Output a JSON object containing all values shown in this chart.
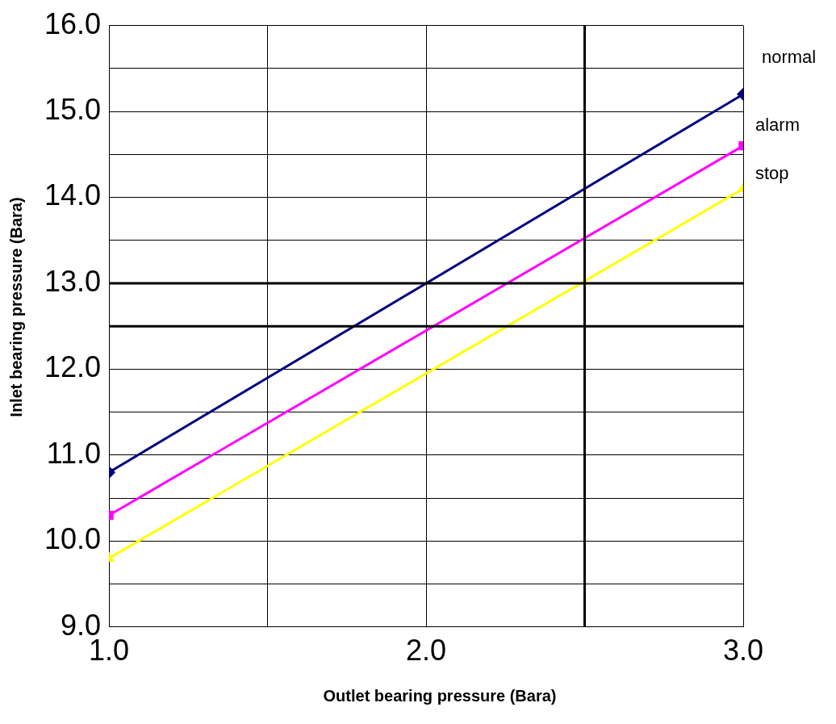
{
  "chart_data": {
    "type": "line",
    "xlabel": "Outlet bearing pressure (Bara)",
    "ylabel": "Inlet bearing pressure (Bara)",
    "x": [
      1,
      3
    ],
    "series": [
      {
        "name": "normal",
        "color": "#000080",
        "values": [
          10.8,
          15.2
        ],
        "marker": "diamond"
      },
      {
        "name": "alarm",
        "color": "#ff00ff",
        "values": [
          10.3,
          14.6
        ],
        "marker": "square"
      },
      {
        "name": "stop",
        "color": "#ffff00",
        "values": [
          9.8,
          14.1
        ],
        "marker": "triangle"
      }
    ],
    "xlim": [
      1,
      3
    ],
    "ylim": [
      9,
      16
    ],
    "xticks": [
      {
        "value": 1,
        "label": "1.0"
      },
      {
        "value": 1.5,
        "label": null
      },
      {
        "value": 2,
        "label": "2.0"
      },
      {
        "value": 3,
        "label": "3.0"
      }
    ],
    "yticks": [
      {
        "value": 9,
        "label": "9.0"
      },
      {
        "value": 9.5,
        "label": null
      },
      {
        "value": 10,
        "label": "10.0"
      },
      {
        "value": 10.5,
        "label": null
      },
      {
        "value": 11,
        "label": "11.0"
      },
      {
        "value": 11.5,
        "label": null
      },
      {
        "value": 12,
        "label": "12.0"
      },
      {
        "value": 13,
        "label": "13.0"
      },
      {
        "value": 13.5,
        "label": null
      },
      {
        "value": 14,
        "label": "14.0"
      },
      {
        "value": 14.5,
        "label": null
      },
      {
        "value": 15,
        "label": "15.0"
      },
      {
        "value": 15.5,
        "label": null
      },
      {
        "value": 16,
        "label": "16.0"
      }
    ],
    "ref_lines": [
      {
        "axis": "x",
        "value": 2.5,
        "color": "#000000"
      },
      {
        "axis": "y",
        "value": 13,
        "color": "#000000"
      },
      {
        "axis": "y",
        "value": 12.5,
        "color": "#000000"
      }
    ],
    "grid": true,
    "legend": false,
    "line_style": "solid"
  }
}
